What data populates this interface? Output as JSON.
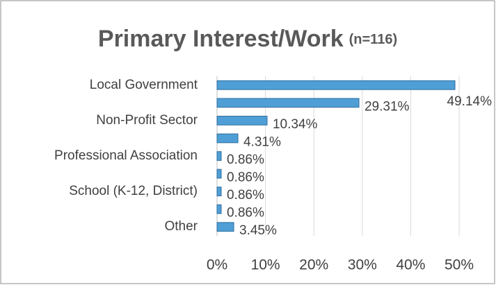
{
  "chart_data": {
    "type": "bar",
    "orientation": "horizontal",
    "title": "Primary Interest/Work",
    "subtitle": "(n=116)",
    "categories": [
      "Local Government",
      null,
      "Non-Profit Sector",
      null,
      "Professional Association",
      null,
      "School (K-12, District)",
      null,
      "Other"
    ],
    "values": [
      49.14,
      29.31,
      10.34,
      4.31,
      0.86,
      0.86,
      0.86,
      0.86,
      3.45
    ],
    "value_labels": [
      "49.14%",
      "29.31%",
      "10.34%",
      "4.31%",
      "0.86%",
      "0.86%",
      "0.86%",
      "0.86%",
      "3.45%"
    ],
    "color": "#4f9fd6",
    "xlim": [
      0,
      50
    ],
    "xticks": [
      {
        "value": 0,
        "label": "0%"
      },
      {
        "value": 10,
        "label": "10%"
      },
      {
        "value": 20,
        "label": "20%"
      },
      {
        "value": 30,
        "label": "30%"
      },
      {
        "value": 40,
        "label": "40%"
      },
      {
        "value": 50,
        "label": "50%"
      }
    ],
    "grid": true
  }
}
